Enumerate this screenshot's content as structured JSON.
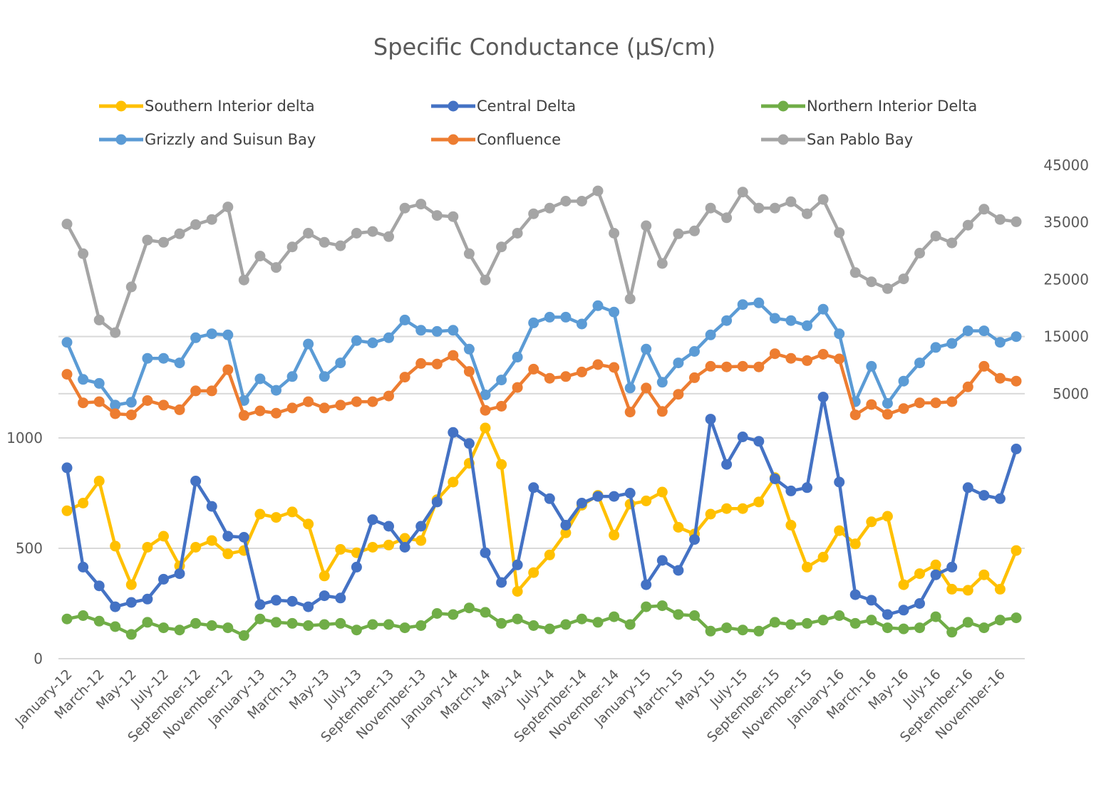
{
  "chart_data": {
    "type": "line",
    "title": "Specific Conductance (µS/cm)",
    "xlabel": "",
    "x_tick_labels": [
      "January-12",
      "March-12",
      "May-12",
      "July-12",
      "September-12",
      "November-12",
      "January-13",
      "March-13",
      "May-13",
      "July-13",
      "September-13",
      "November-13",
      "January-14",
      "March-14",
      "May-14",
      "July-14",
      "September-14",
      "November-14",
      "January-15",
      "March-15",
      "May-15",
      "July-15",
      "September-15",
      "November-15",
      "January-16",
      "March-16",
      "May-16",
      "July-16",
      "September-16",
      "November-16"
    ],
    "x": [
      "January-12",
      "February-12",
      "March-12",
      "April-12",
      "May-12",
      "June-12",
      "July-12",
      "August-12",
      "September-12",
      "October-12",
      "November-12",
      "December-12",
      "January-13",
      "February-13",
      "March-13",
      "April-13",
      "May-13",
      "June-13",
      "July-13",
      "August-13",
      "September-13",
      "October-13",
      "November-13",
      "December-13",
      "January-14",
      "February-14",
      "March-14",
      "April-14",
      "May-14",
      "June-14",
      "July-14",
      "August-14",
      "September-14",
      "October-14",
      "November-14",
      "December-14",
      "January-15",
      "February-15",
      "March-15",
      "April-15",
      "May-15",
      "June-15",
      "July-15",
      "August-15",
      "September-15",
      "October-15",
      "November-15",
      "December-15",
      "January-16",
      "February-16",
      "March-16",
      "April-16",
      "May-16",
      "June-16",
      "July-16",
      "August-16",
      "September-16",
      "October-16",
      "November-16",
      "December-16"
    ],
    "legend_position": "top",
    "grid": true,
    "axes": [
      {
        "id": "upper",
        "side": "right",
        "ylim": [
          0,
          45000
        ],
        "ticks": [
          5000,
          15000,
          25000,
          35000,
          45000
        ]
      },
      {
        "id": "lower",
        "side": "left",
        "ylim": [
          0,
          1200
        ],
        "ticks": [
          0,
          500,
          1000
        ]
      }
    ],
    "series": [
      {
        "name": "Southern Interior delta",
        "axis": "lower",
        "color": "#FFC000",
        "values": [
          670,
          705,
          805,
          510,
          335,
          505,
          555,
          420,
          505,
          535,
          475,
          490,
          655,
          640,
          665,
          610,
          375,
          495,
          480,
          505,
          515,
          545,
          535,
          720,
          800,
          885,
          1045,
          880,
          305,
          390,
          470,
          570,
          695,
          740,
          560,
          700,
          715,
          755,
          595,
          565,
          655,
          680,
          680,
          710,
          820,
          605,
          415,
          460,
          580,
          520,
          620,
          645,
          335,
          385,
          425,
          315,
          310,
          380,
          315,
          490
        ]
      },
      {
        "name": "Central Delta",
        "axis": "lower",
        "color": "#4472C4",
        "values": [
          865,
          415,
          330,
          235,
          255,
          270,
          360,
          385,
          805,
          690,
          555,
          550,
          245,
          265,
          260,
          235,
          285,
          275,
          415,
          630,
          600,
          505,
          600,
          710,
          1025,
          975,
          480,
          345,
          425,
          775,
          725,
          605,
          705,
          735,
          735,
          750,
          335,
          445,
          400,
          540,
          1085,
          880,
          1005,
          985,
          815,
          760,
          775,
          1185,
          800,
          290,
          265,
          200,
          220,
          250,
          380,
          415,
          775,
          740,
          725,
          950
        ]
      },
      {
        "name": "Northern Interior Delta",
        "axis": "lower",
        "color": "#70AD47",
        "values": [
          180,
          195,
          170,
          145,
          110,
          165,
          140,
          130,
          160,
          150,
          140,
          105,
          180,
          165,
          160,
          150,
          155,
          160,
          130,
          155,
          155,
          140,
          150,
          205,
          200,
          230,
          210,
          160,
          180,
          150,
          135,
          155,
          180,
          165,
          190,
          155,
          235,
          240,
          200,
          195,
          125,
          140,
          130,
          125,
          165,
          155,
          160,
          175,
          195,
          160,
          175,
          140,
          135,
          140,
          190,
          120,
          165,
          140,
          175,
          185
        ]
      },
      {
        "name": "Grizzly and Suisun Bay",
        "axis": "upper",
        "color": "#5B9BD5",
        "values": [
          14000,
          7500,
          6800,
          3000,
          3500,
          11200,
          11200,
          10400,
          14800,
          15500,
          15300,
          3800,
          7600,
          5600,
          8000,
          13700,
          8000,
          10400,
          14300,
          13900,
          14800,
          17900,
          16100,
          15900,
          16100,
          12800,
          4800,
          7400,
          11400,
          17400,
          18400,
          18400,
          17200,
          20400,
          19300,
          6000,
          12800,
          7000,
          10400,
          12400,
          15300,
          17800,
          20600,
          20900,
          18200,
          17800,
          16900,
          19800,
          15500,
          3600,
          9800,
          3300,
          7200,
          10400,
          13100,
          13800,
          16000,
          16000,
          14000,
          15000
        ]
      },
      {
        "name": "Confluence",
        "axis": "upper",
        "color": "#ED7D31",
        "values": [
          8400,
          3400,
          3600,
          1500,
          1300,
          3800,
          3000,
          2200,
          5500,
          5500,
          9200,
          1200,
          2000,
          1600,
          2500,
          3600,
          2500,
          3000,
          3600,
          3600,
          4600,
          7900,
          10300,
          10200,
          11700,
          8900,
          2100,
          2800,
          6100,
          9300,
          7700,
          8000,
          8800,
          10100,
          9600,
          1800,
          6000,
          1900,
          4900,
          7800,
          9800,
          9700,
          9800,
          9700,
          12000,
          11200,
          10800,
          11900,
          11100,
          1300,
          3100,
          1400,
          2400,
          3400,
          3400,
          3600,
          6200,
          9800,
          7700,
          7200
        ]
      },
      {
        "name": "San Pablo Bay",
        "axis": "upper",
        "color": "#A5A5A5",
        "values": [
          34700,
          29500,
          17900,
          15700,
          23700,
          31900,
          31500,
          33000,
          34600,
          35500,
          37700,
          24900,
          29100,
          27100,
          30700,
          33100,
          31500,
          30900,
          33100,
          33400,
          32500,
          37500,
          38200,
          36200,
          36000,
          29500,
          24900,
          30700,
          33100,
          36500,
          37500,
          38700,
          38700,
          40500,
          33100,
          21600,
          34400,
          27800,
          33000,
          33500,
          37500,
          35800,
          40300,
          37500,
          37500,
          38600,
          36500,
          39000,
          33200,
          26200,
          24600,
          23400,
          25100,
          29600,
          32600,
          31400,
          34500,
          37300,
          35500,
          35100
        ]
      }
    ]
  }
}
